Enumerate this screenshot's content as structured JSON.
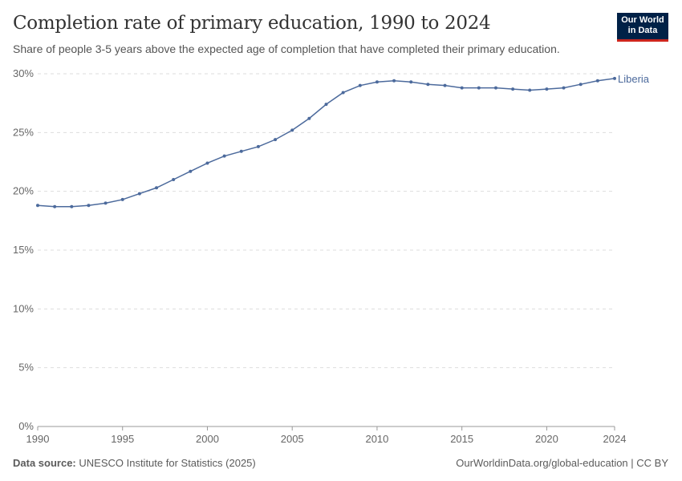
{
  "header": {
    "title": "Completion rate of primary education, 1990 to 2024",
    "subtitle": "Share of people 3-5 years above the expected age of completion that have completed their primary education.",
    "logo": "Our World in Data"
  },
  "footer": {
    "source_label": "Data source:",
    "source": "UNESCO Institute for Statistics (2025)",
    "right": "OurWorldinData.org/global-education | CC BY"
  },
  "chart_data": {
    "type": "line",
    "title": "Completion rate of primary education, 1990 to 2024",
    "xlabel": "",
    "ylabel": "",
    "xlim": [
      1990,
      2024
    ],
    "ylim": [
      0,
      30
    ],
    "x_ticks": [
      1990,
      1995,
      2000,
      2005,
      2010,
      2015,
      2020,
      2024
    ],
    "y_ticks": [
      0,
      5,
      10,
      15,
      20,
      25,
      30
    ],
    "y_tick_format": "%",
    "grid": "horizontal dashed",
    "legend": "inline-right",
    "x": [
      1990,
      1991,
      1992,
      1993,
      1994,
      1995,
      1996,
      1997,
      1998,
      1999,
      2000,
      2001,
      2002,
      2003,
      2004,
      2005,
      2006,
      2007,
      2008,
      2009,
      2010,
      2011,
      2012,
      2013,
      2014,
      2015,
      2016,
      2017,
      2018,
      2019,
      2020,
      2021,
      2022,
      2023,
      2024
    ],
    "series": [
      {
        "name": "Liberia",
        "color": "#4c6a9c",
        "values": [
          18.8,
          18.7,
          18.7,
          18.8,
          19.0,
          19.3,
          19.8,
          20.3,
          21.0,
          21.7,
          22.4,
          23.0,
          23.4,
          23.8,
          24.4,
          25.2,
          26.2,
          27.4,
          28.4,
          29.0,
          29.3,
          29.4,
          29.3,
          29.1,
          29.0,
          28.8,
          28.8,
          28.8,
          28.7,
          28.6,
          28.7,
          28.8,
          29.1,
          29.4,
          29.6
        ]
      }
    ]
  }
}
